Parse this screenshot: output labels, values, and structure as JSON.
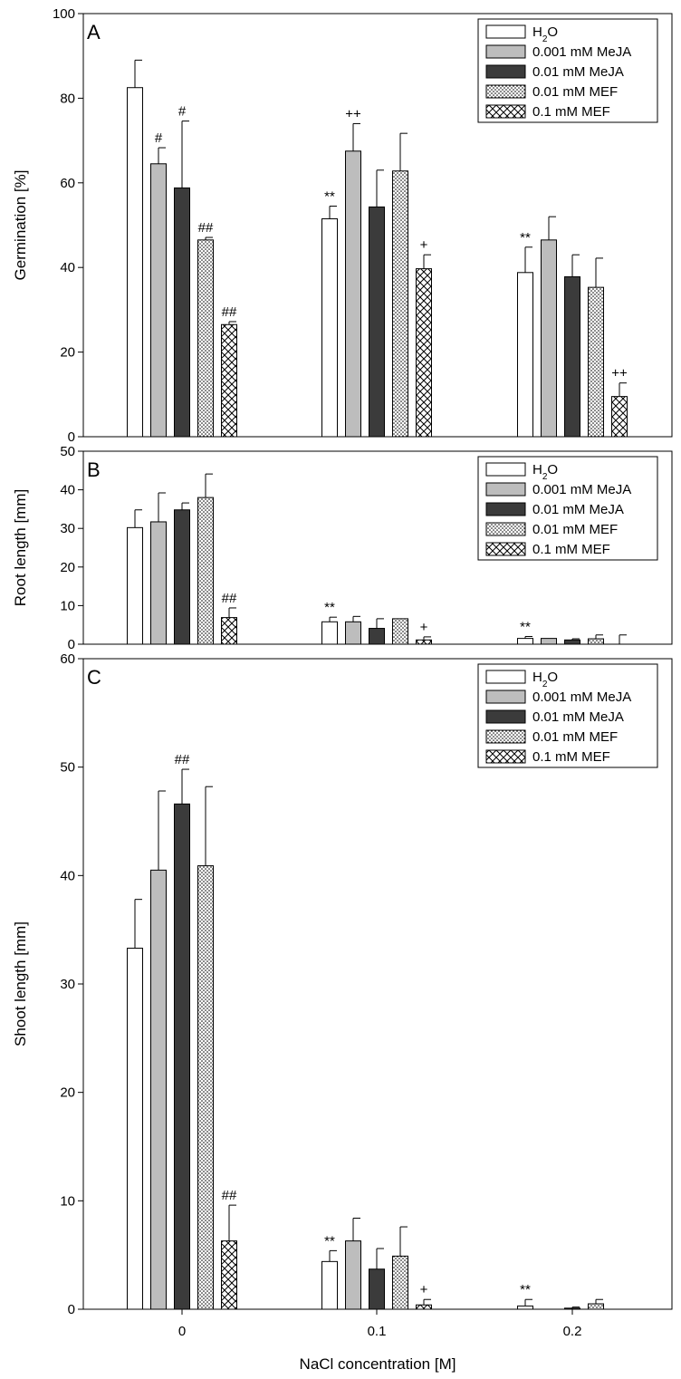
{
  "chart_data": [
    {
      "panel": "A",
      "type": "bar",
      "ylabel": "Germination [%]",
      "ylim": [
        0,
        100
      ],
      "yticks": [
        "0",
        "20",
        "40",
        "60",
        "80",
        "100"
      ],
      "categories": [
        "0",
        "0.1",
        "0.2"
      ],
      "series": [
        {
          "name": "H2O",
          "values": [
            82.5,
            51.5,
            38.8
          ],
          "errors": [
            6.5,
            3.0,
            6.0
          ],
          "marks": [
            "",
            "**",
            "**"
          ]
        },
        {
          "name": "0.001 mM MeJA",
          "values": [
            64.5,
            67.5,
            46.5
          ],
          "errors": [
            3.8,
            6.5,
            5.5
          ],
          "marks": [
            "#",
            "++",
            ""
          ]
        },
        {
          "name": "0.01 mM MeJA",
          "values": [
            58.8,
            54.3,
            37.8
          ],
          "errors": [
            15.8,
            8.7,
            5.2
          ],
          "marks": [
            "#",
            "",
            ""
          ]
        },
        {
          "name": "0.01 mM MEF",
          "values": [
            46.5,
            62.8,
            35.3
          ],
          "errors": [
            0.6,
            8.9,
            6.9
          ],
          "marks": [
            "##",
            "",
            ""
          ]
        },
        {
          "name": "0.1 mM MEF",
          "values": [
            26.5,
            39.7,
            9.5
          ],
          "errors": [
            0.7,
            3.3,
            3.2
          ],
          "marks": [
            "##",
            "+",
            "++"
          ]
        }
      ]
    },
    {
      "panel": "B",
      "type": "bar",
      "ylabel": "Root length [mm]",
      "ylim": [
        0,
        50
      ],
      "yticks": [
        "0",
        "10",
        "20",
        "30",
        "40",
        "50"
      ],
      "categories": [
        "0",
        "0.1",
        "0.2"
      ],
      "series": [
        {
          "name": "H2O",
          "values": [
            30.2,
            5.8,
            1.5
          ],
          "errors": [
            4.6,
            1.2,
            0.5
          ],
          "marks": [
            "",
            "**",
            "**"
          ]
        },
        {
          "name": "0.001 mM MeJA",
          "values": [
            31.7,
            5.8,
            1.5
          ],
          "errors": [
            7.5,
            1.4,
            0.0
          ],
          "marks": [
            "",
            "",
            ""
          ]
        },
        {
          "name": "0.01 mM MeJA",
          "values": [
            34.8,
            4.1,
            1.1
          ],
          "errors": [
            1.8,
            2.5,
            0.3
          ],
          "marks": [
            "",
            "",
            ""
          ]
        },
        {
          "name": "0.01 mM MEF",
          "values": [
            38.0,
            6.6,
            1.4
          ],
          "errors": [
            6.1,
            0.0,
            1.0
          ],
          "marks": [
            "",
            "",
            ""
          ]
        },
        {
          "name": "0.1 mM MEF",
          "values": [
            6.9,
            1.1,
            0.0
          ],
          "errors": [
            2.5,
            0.8,
            2.4
          ],
          "marks": [
            "##",
            "+",
            ""
          ]
        }
      ]
    },
    {
      "panel": "C",
      "type": "bar",
      "ylabel": "Shoot length [mm]",
      "xlabel": "NaCl concentration [M]",
      "ylim": [
        0,
        60
      ],
      "yticks": [
        "0",
        "10",
        "20",
        "30",
        "40",
        "50",
        "60"
      ],
      "categories": [
        "0",
        "0.1",
        "0.2"
      ],
      "series": [
        {
          "name": "H2O",
          "values": [
            33.3,
            4.4,
            0.3
          ],
          "errors": [
            4.5,
            1.0,
            0.6
          ],
          "marks": [
            "",
            "**",
            "**"
          ]
        },
        {
          "name": "0.001 mM MeJA",
          "values": [
            40.5,
            6.3,
            0.0
          ],
          "errors": [
            7.3,
            2.1,
            0.0
          ],
          "marks": [
            "",
            "",
            ""
          ]
        },
        {
          "name": "0.01 mM MeJA",
          "values": [
            46.6,
            3.7,
            0.1
          ],
          "errors": [
            3.2,
            1.9,
            0.1
          ],
          "marks": [
            "##",
            "",
            ""
          ]
        },
        {
          "name": "0.01 mM MEF",
          "values": [
            40.9,
            4.9,
            0.5
          ],
          "errors": [
            7.3,
            2.7,
            0.4
          ],
          "marks": [
            "",
            "",
            ""
          ]
        },
        {
          "name": "0.1 mM MEF",
          "values": [
            6.3,
            0.4,
            0.0
          ],
          "errors": [
            3.3,
            0.5,
            0.0
          ],
          "marks": [
            "##",
            "+",
            ""
          ]
        }
      ]
    }
  ],
  "legend": [
    {
      "base": "H",
      "sub": "2",
      "tail": "O",
      "style": "white"
    },
    {
      "base": "0.001 mM MeJA",
      "sub": "",
      "tail": "",
      "style": "lightgray"
    },
    {
      "base": "0.01 mM MeJA",
      "sub": "",
      "tail": "",
      "style": "darkgray"
    },
    {
      "base": "0.01 mM MEF",
      "sub": "",
      "tail": "",
      "style": "dotted"
    },
    {
      "base": "0.1 mM MEF",
      "sub": "",
      "tail": "",
      "style": "crosshatch"
    }
  ],
  "colors": {
    "white": "#ffffff",
    "lightgray": "#bdbdbd",
    "darkgray": "#3b3b3b",
    "axis": "#000000"
  }
}
